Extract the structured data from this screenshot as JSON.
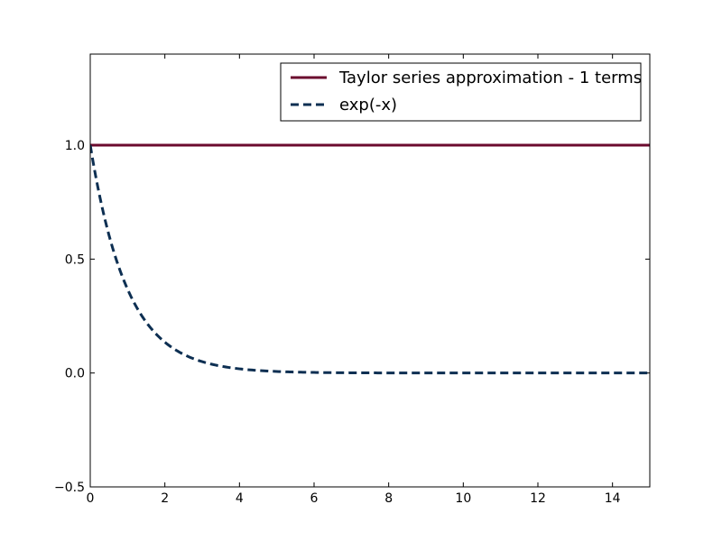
{
  "chart_data": {
    "type": "line",
    "title": "",
    "xlabel": "",
    "ylabel": "",
    "xlim": [
      0,
      15
    ],
    "ylim": [
      -0.5,
      1.4
    ],
    "xticks": [
      0,
      2,
      4,
      6,
      8,
      10,
      12,
      14
    ],
    "yticks": [
      -0.5,
      0.0,
      0.5,
      1.0
    ],
    "xtick_labels": [
      "0",
      "2",
      "4",
      "6",
      "8",
      "10",
      "12",
      "14"
    ],
    "ytick_labels": [
      "−0.5",
      "0.0",
      "0.5",
      "1.0"
    ],
    "grid": false,
    "legend_position": "top-right",
    "series": [
      {
        "name": "Taylor series approximation - 1 terms",
        "color": "#6b0a2e",
        "style": "solid",
        "x": [
          0,
          15
        ],
        "y": [
          1.0,
          1.0
        ]
      },
      {
        "name": "exp(-x)",
        "color": "#0d2f52",
        "style": "dashed",
        "x": [
          0,
          0.25,
          0.5,
          0.75,
          1,
          1.25,
          1.5,
          1.75,
          2,
          2.25,
          2.5,
          2.75,
          3,
          3.25,
          3.5,
          3.75,
          4,
          4.5,
          5,
          5.5,
          6,
          7,
          8,
          9,
          10,
          11,
          12,
          13,
          14,
          15
        ],
        "y": [
          1.0,
          0.7788,
          0.6065,
          0.4724,
          0.3679,
          0.2865,
          0.2231,
          0.1738,
          0.1353,
          0.1054,
          0.0821,
          0.0639,
          0.0498,
          0.0388,
          0.0302,
          0.0235,
          0.0183,
          0.0111,
          0.0067,
          0.0041,
          0.0025,
          0.0009,
          0.0003,
          0.0001,
          0.0,
          0.0,
          0.0,
          0.0,
          0.0,
          0.0
        ]
      }
    ]
  }
}
